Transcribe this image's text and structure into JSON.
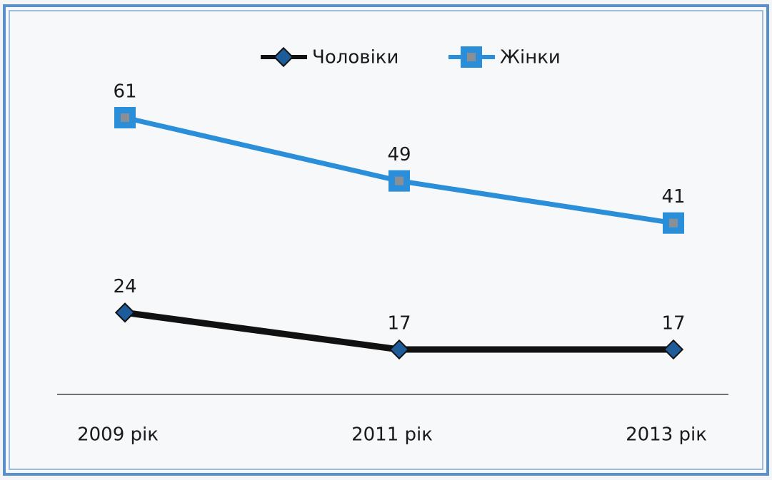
{
  "chart_data": {
    "type": "line",
    "categories": [
      "2009 рік",
      "2011 рік",
      "2013 рік"
    ],
    "series": [
      {
        "name": "Чоловіки",
        "color": "#111111",
        "values": [
          24,
          17,
          17
        ]
      },
      {
        "name": "Жінки",
        "color": "#2a8fd8",
        "values": [
          61,
          49,
          41
        ]
      }
    ],
    "legend": "top"
  }
}
